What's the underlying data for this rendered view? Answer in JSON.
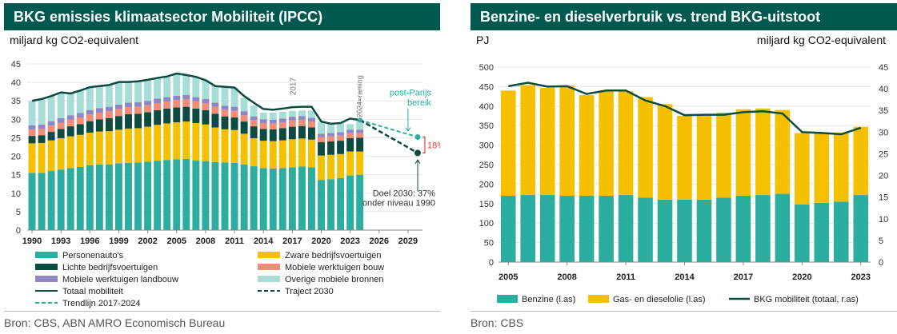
{
  "left": {
    "title": "BKG emissies klimaatsector Mobiliteit (IPCC)",
    "unit": "miljard kg CO2-equivalent",
    "source": "Bron: CBS, ABN AMRO Economisch Bureau",
    "colors": {
      "personenautos": "#2bada0",
      "zware": "#f5c000",
      "lichte": "#0d4a40",
      "mobiele_bouw": "#f08c78",
      "mobiele_landbouw": "#8f86c4",
      "overige": "#a6ddd6",
      "totaal": "#0d4a40",
      "trend": "#2bada0",
      "traject": "#0d4a40",
      "gap": "#e03a3a"
    },
    "annotations": {
      "year2017": "2017",
      "raming": "2024=raming",
      "postparijs1": "post-Parijs",
      "postparijs2": "bereik",
      "gap": "18%",
      "doel1": "Doel 2030: 37%",
      "doel2": "onder niveau 1990"
    },
    "legend": [
      {
        "label": "Personenauto's",
        "kind": "box",
        "color": "#2bada0"
      },
      {
        "label": "Zware bedrijfsvoertuigen",
        "kind": "box",
        "color": "#f5c000"
      },
      {
        "label": "Lichte bedrijfsvoertuigen",
        "kind": "box",
        "color": "#0d4a40"
      },
      {
        "label": "Mobiele werktuigen bouw",
        "kind": "box",
        "color": "#f08c78"
      },
      {
        "label": "Mobiele werktuigen landbouw",
        "kind": "box",
        "color": "#8f86c4"
      },
      {
        "label": "Overige mobiele bronnen",
        "kind": "box",
        "color": "#a6ddd6"
      },
      {
        "label": "Totaal mobiliteit",
        "kind": "line",
        "color": "#0d4a40"
      },
      {
        "label": "Traject 2030",
        "kind": "dash",
        "color": "#0d4a40"
      },
      {
        "label": "Trendlijn 2017-2024",
        "kind": "dash",
        "color": "#2bada0"
      }
    ]
  },
  "right": {
    "title": "Benzine- en dieselverbruik vs. trend BKG-uitstoot",
    "unit_left": "PJ",
    "unit_right": "miljard kg CO2-equivalent",
    "source": "Bron: CBS",
    "legend": [
      {
        "label": "Benzine (l.as)",
        "kind": "box",
        "color": "#2bada0"
      },
      {
        "label": "Gas- en dieselolie (l.as)",
        "kind": "box",
        "color": "#f5c000"
      },
      {
        "label": "BKG mobiliteit (totaal, r.as)",
        "kind": "line",
        "color": "#0d4a40"
      }
    ]
  },
  "chart_data": [
    {
      "type": "bar",
      "stacked": true,
      "title": "BKG emissies klimaatsector Mobiliteit (IPCC)",
      "ylabel": "miljard kg CO2-equivalent",
      "ylim": [
        0,
        45
      ],
      "yticks": [
        0,
        5,
        10,
        15,
        20,
        25,
        30,
        35,
        40,
        45
      ],
      "xlim": [
        1990,
        2030
      ],
      "xticks": [
        "1990",
        "1993",
        "1996",
        "1999",
        "2002",
        "2005",
        "2008",
        "2011",
        "2014",
        "2017",
        "2020",
        "2023",
        "2026",
        "2029"
      ],
      "categories": [
        1990,
        1991,
        1992,
        1993,
        1994,
        1995,
        1996,
        1997,
        1998,
        1999,
        2000,
        2001,
        2002,
        2003,
        2004,
        2005,
        2006,
        2007,
        2008,
        2009,
        2010,
        2011,
        2012,
        2013,
        2014,
        2015,
        2016,
        2017,
        2018,
        2019,
        2020,
        2021,
        2022,
        2023,
        2024
      ],
      "series": [
        {
          "name": "Personenauto's",
          "values": [
            15.5,
            15.5,
            16.0,
            16.4,
            16.8,
            17.1,
            17.6,
            17.8,
            17.8,
            18.1,
            18.2,
            18.3,
            18.5,
            18.8,
            19.0,
            19.2,
            19.3,
            18.9,
            18.7,
            18.4,
            18.3,
            18.2,
            17.8,
            17.3,
            16.8,
            16.7,
            16.8,
            17.0,
            17.2,
            17.0,
            13.6,
            13.8,
            14.1,
            14.8,
            15.0
          ]
        },
        {
          "name": "Zware bedrijfsvoertuigen",
          "values": [
            8.0,
            8.1,
            8.3,
            8.5,
            8.6,
            8.7,
            8.8,
            8.9,
            9.0,
            9.1,
            9.3,
            9.3,
            9.5,
            9.7,
            9.9,
            10.0,
            10.1,
            10.1,
            9.9,
            9.4,
            9.0,
            8.9,
            8.3,
            7.6,
            7.4,
            7.4,
            7.5,
            7.6,
            7.6,
            7.5,
            6.6,
            6.6,
            6.5,
            6.5,
            6.3
          ]
        },
        {
          "name": "Lichte bedrijfsvoertuigen",
          "values": [
            2.0,
            2.1,
            2.3,
            2.5,
            2.7,
            2.9,
            3.1,
            3.3,
            3.5,
            3.7,
            3.9,
            3.9,
            3.9,
            4.0,
            4.0,
            4.0,
            4.0,
            3.9,
            3.9,
            3.7,
            3.5,
            3.4,
            3.3,
            3.2,
            3.2,
            3.2,
            3.3,
            3.4,
            3.4,
            3.3,
            3.6,
            3.6,
            3.6,
            3.6,
            3.7
          ]
        },
        {
          "name": "Mobiele werktuigen bouw",
          "values": [
            1.7,
            1.7,
            1.7,
            1.7,
            1.8,
            1.8,
            1.8,
            1.8,
            1.9,
            1.9,
            1.9,
            1.9,
            1.9,
            1.9,
            1.9,
            2.0,
            2.0,
            2.0,
            1.9,
            1.9,
            1.8,
            1.8,
            1.7,
            1.7,
            1.6,
            1.6,
            1.6,
            1.7,
            1.7,
            1.6,
            1.4,
            1.4,
            1.4,
            1.4,
            1.3
          ]
        },
        {
          "name": "Mobiele werktuigen landbouw",
          "values": [
            1.2,
            1.2,
            1.2,
            1.2,
            1.2,
            1.2,
            1.2,
            1.2,
            1.2,
            1.2,
            1.2,
            1.2,
            1.2,
            1.2,
            1.2,
            1.2,
            1.2,
            1.1,
            1.1,
            1.1,
            1.1,
            1.1,
            1.1,
            1.0,
            1.0,
            1.0,
            1.0,
            1.0,
            1.0,
            1.0,
            0.9,
            0.9,
            0.9,
            0.9,
            0.9
          ]
        },
        {
          "name": "Overige mobiele bronnen",
          "values": [
            6.6,
            6.9,
            6.8,
            7.0,
            6.2,
            6.1,
            6.2,
            6.0,
            5.9,
            6.1,
            5.6,
            5.7,
            5.7,
            5.6,
            5.6,
            6.1,
            5.4,
            5.5,
            5.1,
            4.5,
            5.1,
            5.2,
            3.6,
            2.9,
            1.8,
            1.9,
            1.9,
            1.6,
            1.5,
            2.0,
            3.3,
            2.5,
            2.5,
            1.5,
            2.8
          ]
        },
        {
          "name": "Totaal mobiliteit",
          "type": "line",
          "values": [
            35.0,
            35.5,
            36.3,
            37.3,
            37.0,
            37.8,
            38.7,
            39.0,
            39.3,
            40.1,
            40.1,
            40.3,
            40.7,
            41.2,
            41.6,
            42.4,
            42.0,
            41.5,
            40.6,
            39.0,
            38.8,
            38.6,
            36.3,
            34.5,
            32.8,
            32.6,
            32.9,
            33.3,
            33.4,
            33.4,
            29.4,
            28.8,
            29.0,
            30.2,
            29.8
          ]
        },
        {
          "name": "Trendlijn 2017-2024",
          "type": "line",
          "dashed": true,
          "x": [
            2024,
            2030
          ],
          "values": [
            29.8,
            25.2
          ]
        },
        {
          "name": "Traject 2030",
          "type": "line",
          "dashed": true,
          "x": [
            2024,
            2030
          ],
          "values": [
            29.8,
            20.9
          ]
        }
      ]
    },
    {
      "type": "bar",
      "stacked": true,
      "title": "Benzine- en dieselverbruik vs. trend BKG-uitstoot",
      "ylabel_left": "PJ",
      "ylabel_right": "miljard kg CO2-equivalent",
      "ylim_left": [
        0,
        500
      ],
      "yticks_left": [
        0,
        50,
        100,
        150,
        200,
        250,
        300,
        350,
        400,
        450,
        500
      ],
      "ylim_right": [
        0,
        45
      ],
      "yticks_right": [
        0,
        5,
        10,
        15,
        20,
        25,
        30,
        35,
        40,
        45
      ],
      "xticks": [
        "2005",
        "2008",
        "2011",
        "2014",
        "2017",
        "2020",
        "2023"
      ],
      "categories": [
        2005,
        2006,
        2007,
        2008,
        2009,
        2010,
        2011,
        2012,
        2013,
        2014,
        2015,
        2016,
        2017,
        2018,
        2019,
        2020,
        2021,
        2022,
        2023
      ],
      "series": [
        {
          "name": "Benzine (l.as)",
          "values": [
            170,
            172,
            172,
            170,
            170,
            170,
            172,
            165,
            160,
            160,
            160,
            165,
            170,
            172,
            175,
            148,
            152,
            155,
            172
          ]
        },
        {
          "name": "Gas- en dieselolie (l.as)",
          "values": [
            270,
            282,
            275,
            283,
            258,
            268,
            266,
            258,
            245,
            215,
            218,
            218,
            222,
            222,
            215,
            183,
            178,
            177,
            175
          ]
        },
        {
          "name": "BKG mobiliteit (totaal, r.as)",
          "type": "line",
          "axis": "right",
          "values": [
            40.6,
            41.4,
            40.5,
            40.6,
            38.8,
            39.6,
            39.6,
            37.3,
            36.0,
            33.9,
            34.0,
            34.0,
            34.6,
            34.8,
            34.3,
            30.0,
            29.8,
            29.5,
            31.0
          ]
        }
      ]
    }
  ]
}
